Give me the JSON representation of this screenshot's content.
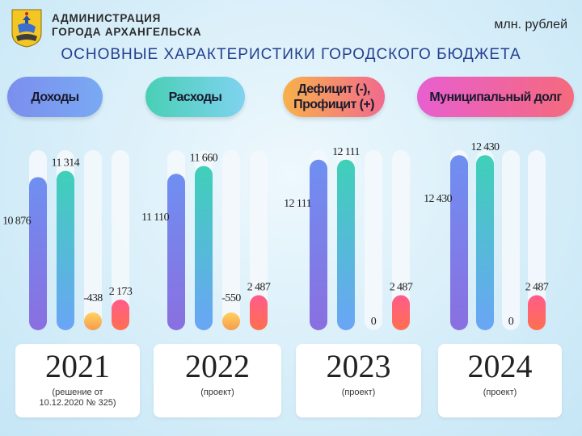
{
  "org": {
    "line1": "АДМИНИСТРАЦИЯ",
    "line2": "ГОРОДА АРХАНГЕЛЬСКА",
    "emblem": "arkhangelsk-coat-of-arms"
  },
  "unit": "млн. рублей",
  "title": "ОСНОВНЫЕ ХАРАКТЕРИСТИКИ  ГОРОДСКОГО БЮДЖЕТА",
  "categories": {
    "income": "Доходы",
    "expenses": "Расходы",
    "deficit_line1": "Дефицит (-),",
    "deficit_line2": "Профицит (+)",
    "debt": "Муниципальный долг"
  },
  "years": [
    {
      "year": "2021",
      "note_line1": "(решение от",
      "note_line2": "10.12.2020 № 325)"
    },
    {
      "year": "2022",
      "note_line1": "(проект)",
      "note_line2": ""
    },
    {
      "year": "2023",
      "note_line1": "(проект)",
      "note_line2": ""
    },
    {
      "year": "2024",
      "note_line1": "(проект)",
      "note_line2": ""
    }
  ],
  "chart_data": {
    "type": "bar",
    "title": "ОСНОВНЫЕ ХАРАКТЕРИСТИКИ  ГОРОДСКОГО БЮДЖЕТА",
    "unit": "млн. рублей",
    "categories": [
      "2021",
      "2022",
      "2023",
      "2024"
    ],
    "series": [
      {
        "name": "Доходы",
        "values": [
          10876,
          11110,
          12111,
          12430
        ],
        "labels": [
          "10 876",
          "11 110",
          "12 111",
          "12 430"
        ],
        "colors": [
          "#6f8ff1",
          "#8a6fe0"
        ]
      },
      {
        "name": "Расходы",
        "values": [
          11314,
          11660,
          12111,
          12430
        ],
        "labels": [
          "11 314",
          "11 660",
          "12 111",
          "12 430"
        ],
        "colors": [
          "#3fd0b8",
          "#6aa5f6"
        ]
      },
      {
        "name": "Дефицит (-), Профицит (+)",
        "values": [
          -438,
          -550,
          0,
          0
        ],
        "labels": [
          "-438",
          "-550",
          "0",
          "0"
        ],
        "colors": [
          "#ffd25e",
          "#f79a4e"
        ]
      },
      {
        "name": "Муниципальный долг",
        "values": [
          2173,
          2487,
          2487,
          2487
        ],
        "labels": [
          "2 173",
          "2 487",
          "2 487",
          "2 487"
        ],
        "colors": [
          "#ff5c8a",
          "#ff6f4f"
        ]
      }
    ]
  }
}
